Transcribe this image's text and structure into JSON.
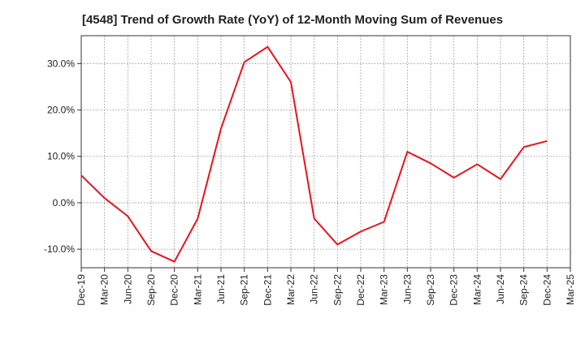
{
  "chart_data": {
    "type": "line",
    "title": "[4548]  Trend of Growth Rate (YoY) of 12-Month Moving Sum of Revenues",
    "xlabel": "",
    "ylabel": "",
    "categories": [
      "Dec-19",
      "Mar-20",
      "Jun-20",
      "Sep-20",
      "Dec-20",
      "Mar-21",
      "Jun-21",
      "Sep-21",
      "Dec-21",
      "Mar-22",
      "Jun-22",
      "Sep-22",
      "Dec-22",
      "Mar-23",
      "Jun-23",
      "Sep-23",
      "Dec-23",
      "Mar-24",
      "Jun-24",
      "Sep-24",
      "Dec-24",
      "Mar-25"
    ],
    "series": [
      {
        "color": "#e8141b",
        "values": [
          5.9,
          1.0,
          -2.9,
          -10.4,
          -12.7,
          -3.4,
          16.0,
          30.3,
          33.6,
          26.0,
          -3.4,
          -9.0,
          -6.2,
          -4.1,
          11.0,
          8.5,
          5.4,
          8.3,
          5.1,
          12.0,
          13.3,
          null
        ]
      }
    ],
    "ylim": [
      -14.0,
      36.0
    ],
    "yticks": [
      30.0,
      20.0,
      10.0,
      0.0,
      -10.0
    ],
    "ytick_labels": [
      "30.0%",
      "20.0%",
      "10.0%",
      "0.0%",
      "-10.0%"
    ],
    "grid": true
  }
}
